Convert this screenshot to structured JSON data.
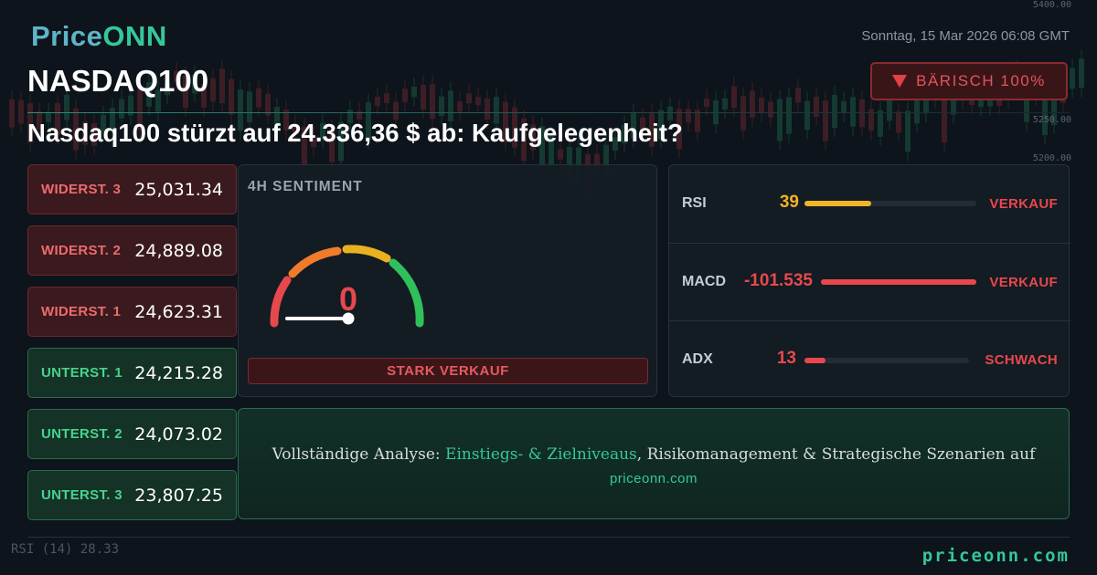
{
  "brand": {
    "part1": "Price",
    "part2": "ONN"
  },
  "date": "Sonntag, 15 Mar 2026 06:08 GMT",
  "symbol": "NASDAQ100",
  "sentiment_badge": {
    "label": "BÄRISCH 100%",
    "color": "#e0414a"
  },
  "headline": "Nasdaq100 stürzt auf 24.336,36 $ ab: Kaufgelegenheit?",
  "levels": [
    {
      "label": "WIDERST. 3",
      "value": "25,031.34",
      "kind": "resistance"
    },
    {
      "label": "WIDERST. 2",
      "value": "24,889.08",
      "kind": "resistance"
    },
    {
      "label": "WIDERST. 1",
      "value": "24,623.31",
      "kind": "resistance"
    },
    {
      "label": "UNTERST. 1",
      "value": "24,215.28",
      "kind": "support"
    },
    {
      "label": "UNTERST. 2",
      "value": "24,073.02",
      "kind": "support"
    },
    {
      "label": "UNTERST. 3",
      "value": "23,807.25",
      "kind": "support"
    }
  ],
  "sentiment_panel": {
    "title": "4H SENTIMENT",
    "gauge_value": "0",
    "signal": "STARK VERKAUF"
  },
  "indicators": [
    {
      "name": "RSI",
      "value": "39",
      "value_color": "#f0b429",
      "bar_fraction": 0.39,
      "bar_color": "#f0b429",
      "signal": "VERKAUF"
    },
    {
      "name": "MACD",
      "value": "-101.535",
      "value_color": "#e8484c",
      "bar_fraction": 1.0,
      "bar_color": "#e8484c",
      "signal": "VERKAUF"
    },
    {
      "name": "ADX",
      "value": "13",
      "value_color": "#e8484c",
      "bar_fraction": 0.13,
      "bar_color": "#e8484c",
      "signal": "SCHWACH"
    }
  ],
  "cta": {
    "prefix": "Vollständige Analyse: ",
    "highlight": "Einstiegs- & Zielniveaus",
    "suffix": ", Risikomanagement & Strategische Szenarien auf",
    "link": "priceonn.com"
  },
  "background": {
    "price_labels": [
      "5400.00",
      "5250.00",
      "5200.00"
    ],
    "rsi_label": "RSI  (14)  28.33"
  },
  "footer": {
    "brand": "priceonn.com"
  },
  "colors": {
    "accent": "#35c79a",
    "bearish": "#e0414a",
    "background": "#0d141b"
  }
}
